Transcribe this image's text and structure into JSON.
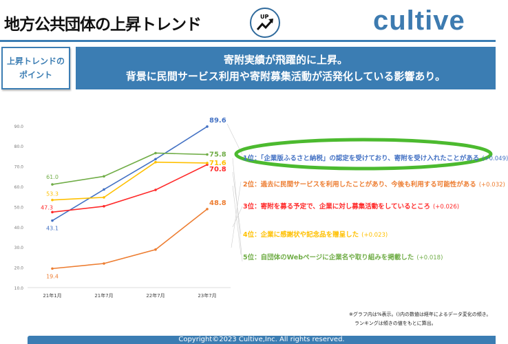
{
  "header": {
    "title": "地方公共団体の上昇トレンド",
    "icon_label": "UP",
    "logo": "cultive"
  },
  "point_box": {
    "line1": "上昇トレンドの",
    "line2": "ポイント"
  },
  "banner": {
    "line1": "寄附実績が飛躍的に上昇。",
    "line2": "背景に民間サービス利用や寄附募集活動が活発化している影響あり。"
  },
  "chart_data": {
    "type": "line",
    "categories": [
      "21年1月",
      "21年7月",
      "22年7月",
      "23年7月"
    ],
    "ylim": [
      10,
      90
    ],
    "yticks": [
      "10.0",
      "20.0",
      "30.0",
      "40.0",
      "50.0",
      "60.0",
      "70.0",
      "80.0",
      "90.0"
    ],
    "series": [
      {
        "name": "1位",
        "color": "#4472c4",
        "values": [
          43.1,
          58.5,
          73.5,
          89.6
        ],
        "first_label": "43.1",
        "last_label": "89.6"
      },
      {
        "name": "2位",
        "color": "#ed7d31",
        "values": [
          19.4,
          21.9,
          28.8,
          48.8
        ],
        "first_label": "19.4",
        "last_label": "48.8"
      },
      {
        "name": "3位",
        "color": "#ff2a2a",
        "values": [
          47.3,
          50.2,
          58.3,
          70.8
        ],
        "first_label": "47.3",
        "last_label": "70.8"
      },
      {
        "name": "4位",
        "color": "#ffc000",
        "values": [
          53.3,
          54.6,
          72.0,
          71.6
        ],
        "first_label": "53.3",
        "last_label": "71.6"
      },
      {
        "name": "5位",
        "color": "#70ad47",
        "values": [
          61.0,
          65.0,
          76.5,
          75.8
        ],
        "first_label": "61.0",
        "last_label": "75.8"
      }
    ]
  },
  "ranking": [
    {
      "text": "1位：「企業版ふるさと納税」の認定を受けており、寄附を受け入れたことがある",
      "delta": "(+0.049)",
      "color": "#4472c4"
    },
    {
      "text": "2位：過去に民間サービスを利用したことがあり、今後も利用する可能性がある",
      "delta": "(+0.032)",
      "color": "#ed7d31"
    },
    {
      "text": "3位：寄附を募る予定で、企業に対し募集活動をしているところ",
      "delta": "(+0.026)",
      "color": "#ff2a2a"
    },
    {
      "text": "4位：企業に感謝状や記念品を贈呈した",
      "delta": "(+0.023)",
      "color": "#ffc000"
    },
    {
      "text": "5位：自団体のWebページに企業名や取り組みを掲載した",
      "delta": "(+0.018)",
      "color": "#70ad47"
    }
  ],
  "notes": {
    "line1": "※グラフ内は%表示。()内の数値は経年によるデータ変化の傾き。",
    "line2": "ランキングは傾きの値をもとに算出。"
  },
  "footer": "Copyright©2023 Cultive,Inc. All rights reserved."
}
